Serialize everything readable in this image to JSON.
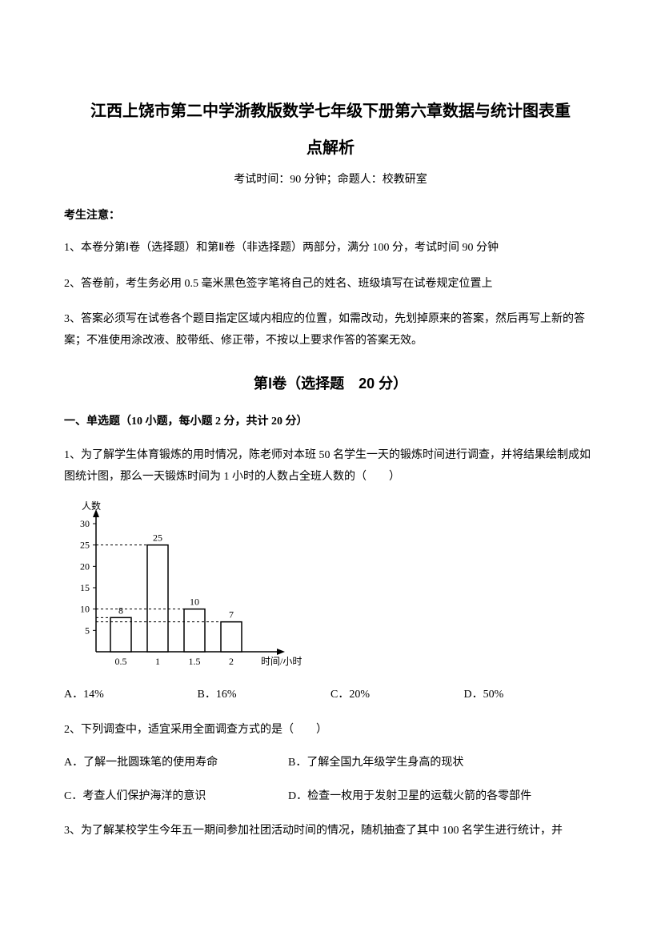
{
  "title_line1": "江西上饶市第二中学浙教版数学七年级下册第六章数据与统计图表重",
  "title_line2": "点解析",
  "exam_info": "考试时间：90 分钟；命题人：校教研室",
  "notice_header": "考生注意：",
  "notice1": "1、本卷分第Ⅰ卷（选择题）和第Ⅱ卷（非选择题）两部分，满分 100 分，考试时间 90 分钟",
  "notice2": "2、答卷前，考生务必用 0.5 毫米黑色签字笔将自己的姓名、班级填写在试卷规定位置上",
  "notice3": "3、答案必须写在试卷各个题目指定区域内相应的位置，如需改动，先划掉原来的答案，然后再写上新的答案；不准使用涂改液、胶带纸、修正带，不按以上要求作答的答案无效。",
  "section1_header": "第Ⅰ卷（选择题　20 分）",
  "q_type1": "一、单选题（10 小题，每小题 2 分，共计 20 分）",
  "q1_text": "1、为了解学生体育锻炼的用时情况，陈老师对本班 50 名学生一天的锻炼时间进行调查，并将结果绘制成如图统计图，那么一天锻炼时间为 1 小时的人数占全班人数的（　　）",
  "q1_optA": "A．14%",
  "q1_optB": "B．16%",
  "q1_optC": "C．20%",
  "q1_optD": "D．50%",
  "q2_text": "2、下列调查中，适宜采用全面调查方式的是（　　）",
  "q2_optA": "A．了解一批圆珠笔的使用寿命",
  "q2_optB": "B．了解全国九年级学生身高的现状",
  "q2_optC": "C．考查人们保护海洋的意识",
  "q2_optD": "D．检查一枚用于发射卫星的运载火箭的各零部件",
  "q3_text": "3、为了解某校学生今年五一期间参加社团活动时间的情况，随机抽查了其中 100 名学生进行统计，并",
  "chart": {
    "type": "bar",
    "y_label": "人数",
    "x_label": "时间/小时",
    "y_max": 30,
    "y_ticks": [
      5,
      10,
      15,
      20,
      25,
      30
    ],
    "x_categories": [
      "0.5",
      "1",
      "1.5",
      "2"
    ],
    "values": [
      8,
      25,
      10,
      7
    ],
    "bar_labels": [
      "8",
      "25",
      "10",
      "7"
    ],
    "bar_fill": "#ffffff",
    "bar_stroke": "#000000",
    "axis_color": "#000000",
    "dash_color": "#000000",
    "text_color": "#000000",
    "fontsize": 12
  }
}
